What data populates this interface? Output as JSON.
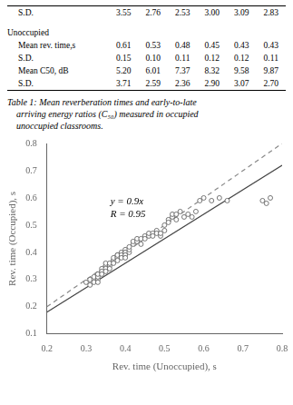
{
  "chart_data": {
    "type": "scatter",
    "xlabel": "Rev. time (Unoccupied), s",
    "ylabel": "Rev. time (Occupied), s",
    "xlim": [
      0.2,
      0.8
    ],
    "ylim": [
      0.1,
      0.8
    ],
    "xticks": [
      0.2,
      0.3,
      0.4,
      0.5,
      0.6,
      0.7,
      0.8
    ],
    "yticks": [
      0.1,
      0.2,
      0.3,
      0.4,
      0.5,
      0.6,
      0.7,
      0.8
    ],
    "grid": false,
    "annotations": [
      "y = 0.9x",
      "R = 0.95"
    ],
    "caption": "Table 1: Mean reverberation times and early-to-late\n    arriving energy ratios (C₅₀) measured in occupied\n    unoccupied classrooms.",
    "table": [
      [
        "S.D.",
        "3.55",
        "2.76",
        "2.53",
        "3.00",
        "3.09",
        "2.83"
      ],
      [
        "Unoccupied"
      ],
      [
        "Mean rev. time,s",
        "0.61",
        "0.53",
        "0.48",
        "0.45",
        "0.43",
        "0.43"
      ],
      [
        "S.D.",
        "0.15",
        "0.10",
        "0.11",
        "0.12",
        "0.12",
        "0.11"
      ],
      [
        "Mean C50, dB",
        "5.20",
        "6.01",
        "7.37",
        "8.32",
        "9.58",
        "9.87"
      ],
      [
        "S.D.",
        "3.71",
        "2.59",
        "2.36",
        "2.90",
        "3.07",
        "2.70"
      ]
    ],
    "series": [
      {
        "type": "scatter",
        "color": "#555555",
        "marker": "o",
        "x": [
          0.3,
          0.31,
          0.31,
          0.32,
          0.32,
          0.32,
          0.33,
          0.33,
          0.33,
          0.33,
          0.34,
          0.34,
          0.34,
          0.34,
          0.35,
          0.35,
          0.35,
          0.35,
          0.35,
          0.36,
          0.36,
          0.36,
          0.37,
          0.37,
          0.37,
          0.37,
          0.38,
          0.38,
          0.38,
          0.38,
          0.38,
          0.39,
          0.39,
          0.39,
          0.4,
          0.4,
          0.4,
          0.4,
          0.4,
          0.41,
          0.41,
          0.41,
          0.42,
          0.42,
          0.43,
          0.43,
          0.44,
          0.44,
          0.45,
          0.45,
          0.46,
          0.46,
          0.47,
          0.47,
          0.48,
          0.48,
          0.49,
          0.49,
          0.5,
          0.5,
          0.51,
          0.51,
          0.52,
          0.52,
          0.53,
          0.53,
          0.54,
          0.55,
          0.56,
          0.57,
          0.58,
          0.59,
          0.6,
          0.62,
          0.64,
          0.66,
          0.75,
          0.76,
          0.77
        ],
        "values": [
          0.29,
          0.3,
          0.28,
          0.3,
          0.31,
          0.29,
          0.3,
          0.31,
          0.32,
          0.29,
          0.33,
          0.34,
          0.33,
          0.32,
          0.35,
          0.35,
          0.34,
          0.36,
          0.33,
          0.35,
          0.36,
          0.34,
          0.37,
          0.37,
          0.36,
          0.38,
          0.38,
          0.39,
          0.38,
          0.39,
          0.37,
          0.4,
          0.39,
          0.38,
          0.4,
          0.41,
          0.4,
          0.39,
          0.38,
          0.4,
          0.41,
          0.42,
          0.43,
          0.44,
          0.44,
          0.45,
          0.45,
          0.43,
          0.46,
          0.45,
          0.46,
          0.47,
          0.47,
          0.46,
          0.48,
          0.47,
          0.46,
          0.47,
          0.48,
          0.5,
          0.52,
          0.51,
          0.53,
          0.54,
          0.54,
          0.52,
          0.55,
          0.53,
          0.54,
          0.53,
          0.55,
          0.59,
          0.6,
          0.59,
          0.6,
          0.59,
          0.59,
          0.58,
          0.6
        ]
      },
      {
        "type": "line",
        "color": "#444444",
        "line_style": "solid",
        "x": [
          0.2,
          0.8
        ],
        "values": [
          0.18,
          0.72
        ]
      },
      {
        "type": "line",
        "color": "#888888",
        "line_style": "dashed",
        "x": [
          0.2,
          0.8
        ],
        "values": [
          0.2,
          0.8
        ]
      }
    ]
  }
}
